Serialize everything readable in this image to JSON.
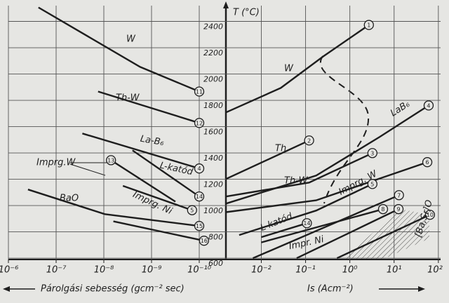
{
  "chart_data": [
    {
      "type": "line",
      "y_label": "T (°C)",
      "x_label": "Párolgási sebesség (gcm⁻² sec)",
      "xlim": [
        -6,
        -10.5
      ],
      "xticks": [
        {
          "value": -6,
          "label": "10⁻⁶"
        },
        {
          "value": -7,
          "label": "10⁻⁷"
        },
        {
          "value": -8,
          "label": "10⁻⁸"
        },
        {
          "value": -9,
          "label": "10⁻⁹"
        },
        {
          "value": -10,
          "label": "10⁻¹⁰"
        }
      ],
      "ylim": [
        590,
        2520
      ],
      "yticks": [
        600,
        800,
        1000,
        1200,
        1400,
        1600,
        1800,
        2000,
        2200,
        2400
      ],
      "grid": true,
      "color": "#1e1e1e",
      "series": [
        {
          "name": "W",
          "marker": "11",
          "x": [
            -6.63,
            -8.76,
            -10
          ],
          "values": [
            2506,
            2054,
            1867
          ]
        },
        {
          "name": "Th-W",
          "marker": "12",
          "x": [
            -7.88,
            -10
          ],
          "values": [
            1867,
            1628
          ]
        },
        {
          "name": "La-B₆",
          "marker": "4",
          "x": [
            -7.55,
            -10
          ],
          "values": [
            1548,
            1282
          ]
        },
        {
          "name": "L-katód",
          "marker": "14",
          "x": [
            -8.6,
            -10
          ],
          "values": [
            1420,
            1069
          ]
        },
        {
          "name": "Imprg.W",
          "start_marker": "13",
          "x": [
            -8.15,
            -9.5
          ],
          "values": [
            1345,
            1030
          ]
        },
        {
          "name": "Imprg. Ni",
          "marker": "5",
          "x": [
            -8.4,
            -9.85
          ],
          "values": [
            1150,
            965
          ]
        },
        {
          "name": "BaO",
          "marker": "15",
          "x": [
            -6.41,
            -8.02,
            -10
          ],
          "values": [
            1122,
            935,
            845
          ]
        },
        {
          "marker": "16",
          "x": [
            -8.2,
            -10.1
          ],
          "values": [
            880,
            733
          ]
        }
      ]
    },
    {
      "type": "line",
      "x_label": "Is (Acm⁻²)",
      "xlim": [
        -2.8,
        2.05
      ],
      "xticks": [
        {
          "value": -2,
          "label": "10⁻²"
        },
        {
          "value": -1,
          "label": "10⁻¹"
        },
        {
          "value": 0,
          "label": "10⁰"
        },
        {
          "value": 1,
          "label": "10¹"
        },
        {
          "value": 2,
          "label": "10²"
        }
      ],
      "ylim": [
        590,
        2520
      ],
      "grid": true,
      "color": "#1e1e1e",
      "series": [
        {
          "name": "W",
          "marker": "1",
          "x": [
            -2.8,
            -1.56,
            -0.6,
            0.43
          ],
          "values": [
            1708,
            1894,
            2134,
            2373
          ]
        },
        {
          "name": "Th",
          "marker": "2",
          "x": [
            -2.8,
            -0.92
          ],
          "values": [
            1202,
            1495
          ]
        },
        {
          "name": "LaB₆",
          "marker": "4",
          "x": [
            -2.8,
            -0.76,
            0.67,
            1.78
          ],
          "values": [
            1015,
            1228,
            1521,
            1761
          ]
        },
        {
          "name": "Th-W",
          "marker": "3",
          "x": [
            -2.8,
            -0.92,
            0.51
          ],
          "values": [
            1069,
            1175,
            1399
          ]
        },
        {
          "marker": "6",
          "x": [
            -2.8,
            -0.76,
            1.75
          ],
          "values": [
            950,
            1040,
            1330
          ]
        },
        {
          "name": "Imprg. W",
          "marker": "5",
          "x": [
            -2.5,
            -0.76,
            0.51
          ],
          "values": [
            776,
            962,
            1164
          ]
        },
        {
          "name": "L-katód",
          "marker": "14",
          "x": [
            -2.0,
            -0.97
          ],
          "values": [
            760,
            866
          ]
        },
        {
          "marker": "7",
          "x": [
            -2.19,
            1.11
          ],
          "values": [
            600,
            1079
          ]
        },
        {
          "name": "Impr. Ni",
          "marker": "8",
          "x": [
            -2.0,
            0.75
          ],
          "values": [
            720,
            973
          ]
        },
        {
          "marker": "9",
          "x": [
            -1.2,
            1.1
          ],
          "values": [
            600,
            973
          ]
        },
        {
          "name": "[Ba,Sr]O",
          "marker": "10",
          "x": [
            -0.29,
            1.81
          ],
          "values": [
            600,
            930
          ]
        }
      ]
    }
  ]
}
